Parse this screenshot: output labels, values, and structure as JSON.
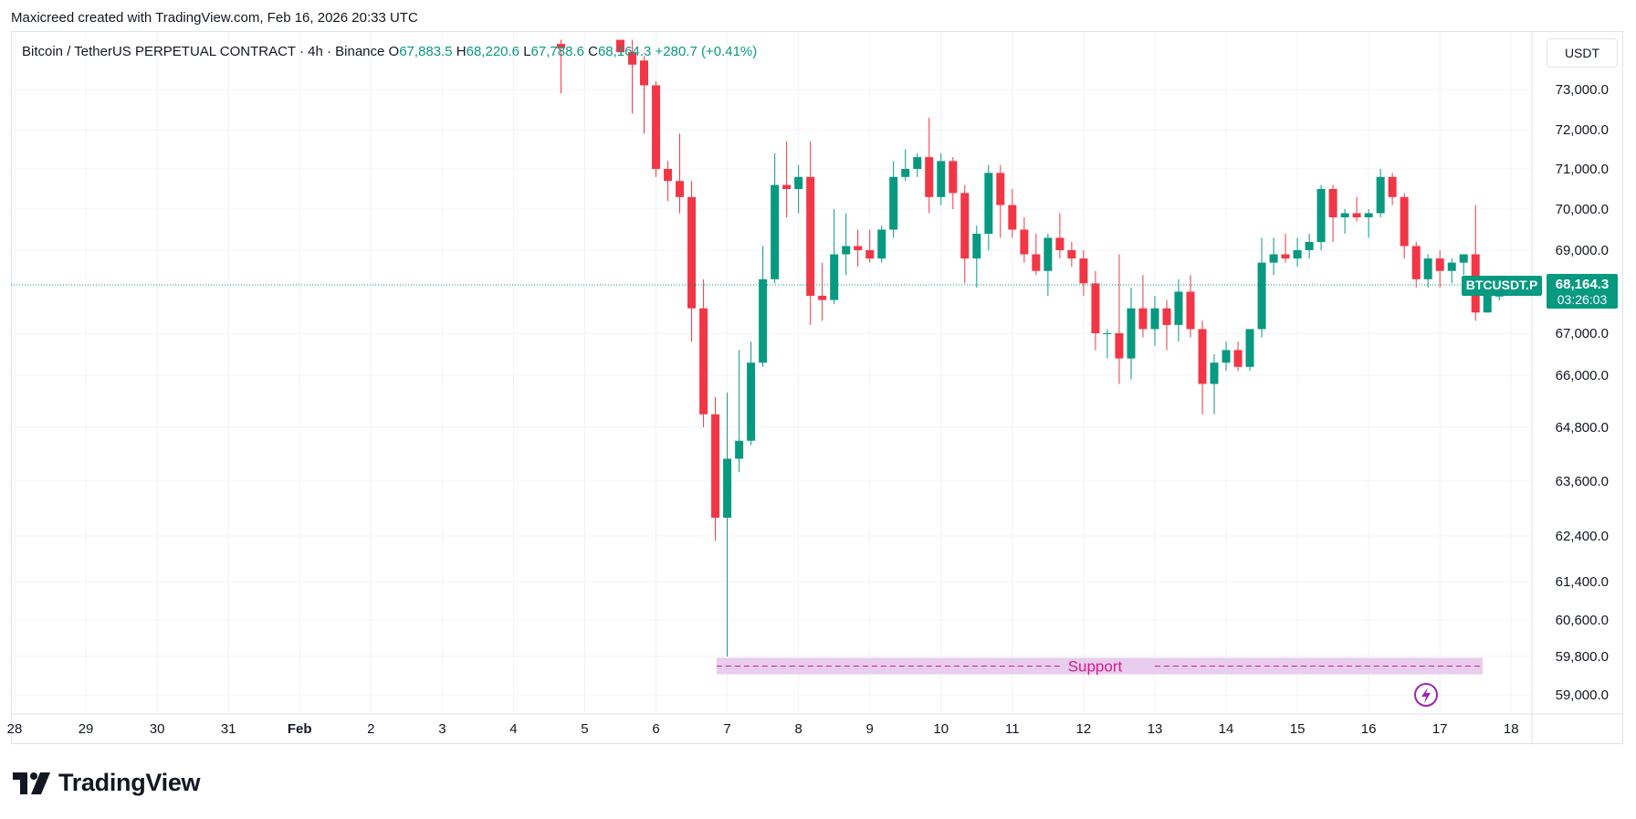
{
  "header": {
    "credit": "Maxicreed created with TradingView.com, Feb 16, 2026 20:33 UTC"
  },
  "legend": {
    "symbol": "Bitcoin / TetherUS PERPETUAL CONTRACT · 4h · Binance",
    "open_label": "O",
    "open": "67,883.5",
    "high_label": "H",
    "high": "68,220.6",
    "low_label": "L",
    "low": "67,788.6",
    "close_label": "C",
    "close": "68,164.3",
    "change": "+280.7 (+0.41%)"
  },
  "axis": {
    "unit": "USDT"
  },
  "price_tag": {
    "symbol": "BTCUSDT.P",
    "price": "68,164.3",
    "countdown": "03:26:03"
  },
  "annotation": {
    "text": "Support"
  },
  "brand": {
    "name": "TradingView"
  },
  "colors": {
    "up": "#089981",
    "down": "#f23645",
    "support_band": "#e8cdee",
    "support_line": "#d81b8c",
    "grid": "#f0f3fa"
  },
  "chart_data": {
    "type": "candlestick",
    "timeframe": "4h",
    "ylim": [
      58800,
      74200
    ],
    "y_ticks": [
      73000,
      72000,
      71000,
      70000,
      69000,
      67000,
      66000,
      64800,
      63600,
      62400,
      61400,
      60600,
      59800,
      59000
    ],
    "y_tick_labels": [
      "73,000.0",
      "72,000.0",
      "71,000.0",
      "70,000.0",
      "69,000.0",
      "67,000.0",
      "66,000.0",
      "64,800.0",
      "63,600.0",
      "62,400.0",
      "61,400.0",
      "60,600.0",
      "59,800.0",
      "59,000.0"
    ],
    "x_ticks": [
      "28",
      "29",
      "30",
      "31",
      "Feb",
      "2",
      "3",
      "4",
      "5",
      "6",
      "7",
      "8",
      "9",
      "10",
      "11",
      "12",
      "13",
      "14",
      "15",
      "16",
      "17",
      "18"
    ],
    "last_price": 68164.3,
    "support": {
      "level": 59600,
      "label": "Support",
      "from_day": 5.85,
      "to_day": 16.6
    },
    "candles": [
      {
        "t": 3.667,
        "o": 74100,
        "h": 74200,
        "l": 72900,
        "c": 74000
      },
      {
        "t": 4.5,
        "o": 74200,
        "h": 74200,
        "l": 73900,
        "c": 73900
      },
      {
        "t": 4.667,
        "o": 73900,
        "h": 74200,
        "l": 72400,
        "c": 73600
      },
      {
        "t": 4.833,
        "o": 73700,
        "h": 73800,
        "l": 71900,
        "c": 73100
      },
      {
        "t": 5.0,
        "o": 73100,
        "h": 73200,
        "l": 70800,
        "c": 71000
      },
      {
        "t": 5.167,
        "o": 71000,
        "h": 71200,
        "l": 70200,
        "c": 70700
      },
      {
        "t": 5.333,
        "o": 70700,
        "h": 71900,
        "l": 69900,
        "c": 70300
      },
      {
        "t": 5.5,
        "o": 70300,
        "h": 70700,
        "l": 66800,
        "c": 67600
      },
      {
        "t": 5.667,
        "o": 67600,
        "h": 68300,
        "l": 64800,
        "c": 65100
      },
      {
        "t": 5.833,
        "o": 65100,
        "h": 65500,
        "l": 62300,
        "c": 62800
      },
      {
        "t": 6.0,
        "o": 62800,
        "h": 65600,
        "l": 59800,
        "c": 64100
      },
      {
        "t": 6.167,
        "o": 64100,
        "h": 66600,
        "l": 63800,
        "c": 64500
      },
      {
        "t": 6.333,
        "o": 64500,
        "h": 66800,
        "l": 64400,
        "c": 66300
      },
      {
        "t": 6.5,
        "o": 66300,
        "h": 69100,
        "l": 66200,
        "c": 68300
      },
      {
        "t": 6.667,
        "o": 68300,
        "h": 71400,
        "l": 68200,
        "c": 70600
      },
      {
        "t": 6.833,
        "o": 70600,
        "h": 71700,
        "l": 69800,
        "c": 70500
      },
      {
        "t": 7.0,
        "o": 70500,
        "h": 71100,
        "l": 69900,
        "c": 70800
      },
      {
        "t": 7.167,
        "o": 70800,
        "h": 71700,
        "l": 67200,
        "c": 67900
      },
      {
        "t": 7.333,
        "o": 67900,
        "h": 68700,
        "l": 67300,
        "c": 67800
      },
      {
        "t": 7.5,
        "o": 67800,
        "h": 70000,
        "l": 67700,
        "c": 68900
      },
      {
        "t": 7.667,
        "o": 68900,
        "h": 69900,
        "l": 68400,
        "c": 69100
      },
      {
        "t": 7.833,
        "o": 69100,
        "h": 69500,
        "l": 68600,
        "c": 69000
      },
      {
        "t": 8.0,
        "o": 69000,
        "h": 69500,
        "l": 68700,
        "c": 68800
      },
      {
        "t": 8.167,
        "o": 68800,
        "h": 69600,
        "l": 68700,
        "c": 69500
      },
      {
        "t": 8.333,
        "o": 69500,
        "h": 71200,
        "l": 69300,
        "c": 70800
      },
      {
        "t": 8.5,
        "o": 70800,
        "h": 71500,
        "l": 70700,
        "c": 71000
      },
      {
        "t": 8.667,
        "o": 71000,
        "h": 71400,
        "l": 70800,
        "c": 71300
      },
      {
        "t": 8.833,
        "o": 71300,
        "h": 72300,
        "l": 69900,
        "c": 70300
      },
      {
        "t": 9.0,
        "o": 70300,
        "h": 71400,
        "l": 70100,
        "c": 71200
      },
      {
        "t": 9.167,
        "o": 71200,
        "h": 71300,
        "l": 70000,
        "c": 70400
      },
      {
        "t": 9.333,
        "o": 70400,
        "h": 70600,
        "l": 68200,
        "c": 68800
      },
      {
        "t": 9.5,
        "o": 68800,
        "h": 69600,
        "l": 68100,
        "c": 69400
      },
      {
        "t": 9.667,
        "o": 69400,
        "h": 71100,
        "l": 69000,
        "c": 70900
      },
      {
        "t": 9.833,
        "o": 70900,
        "h": 71100,
        "l": 69300,
        "c": 70100
      },
      {
        "t": 10.0,
        "o": 70100,
        "h": 70500,
        "l": 69300,
        "c": 69500
      },
      {
        "t": 10.167,
        "o": 69500,
        "h": 69800,
        "l": 68700,
        "c": 68900
      },
      {
        "t": 10.333,
        "o": 68900,
        "h": 69400,
        "l": 68400,
        "c": 68500
      },
      {
        "t": 10.5,
        "o": 68500,
        "h": 69400,
        "l": 67900,
        "c": 69300
      },
      {
        "t": 10.667,
        "o": 69300,
        "h": 69900,
        "l": 68800,
        "c": 69000
      },
      {
        "t": 10.833,
        "o": 69000,
        "h": 69200,
        "l": 68600,
        "c": 68800
      },
      {
        "t": 11.0,
        "o": 68800,
        "h": 69000,
        "l": 67900,
        "c": 68200
      },
      {
        "t": 11.167,
        "o": 68200,
        "h": 68500,
        "l": 66600,
        "c": 67000
      },
      {
        "t": 11.333,
        "o": 67000,
        "h": 67100,
        "l": 66400,
        "c": 67000
      },
      {
        "t": 11.5,
        "o": 67000,
        "h": 68900,
        "l": 65800,
        "c": 66400
      },
      {
        "t": 11.667,
        "o": 66400,
        "h": 68100,
        "l": 65900,
        "c": 67600
      },
      {
        "t": 11.833,
        "o": 67600,
        "h": 68400,
        "l": 66900,
        "c": 67100
      },
      {
        "t": 12.0,
        "o": 67100,
        "h": 67900,
        "l": 66700,
        "c": 67600
      },
      {
        "t": 12.167,
        "o": 67600,
        "h": 67800,
        "l": 66600,
        "c": 67200
      },
      {
        "t": 12.333,
        "o": 67200,
        "h": 68300,
        "l": 66800,
        "c": 68000
      },
      {
        "t": 12.5,
        "o": 68000,
        "h": 68400,
        "l": 66900,
        "c": 67100
      },
      {
        "t": 12.667,
        "o": 67100,
        "h": 67300,
        "l": 65100,
        "c": 65800
      },
      {
        "t": 12.833,
        "o": 65800,
        "h": 66500,
        "l": 65100,
        "c": 66300
      },
      {
        "t": 13.0,
        "o": 66300,
        "h": 66800,
        "l": 66100,
        "c": 66600
      },
      {
        "t": 13.167,
        "o": 66600,
        "h": 66800,
        "l": 66100,
        "c": 66200
      },
      {
        "t": 13.333,
        "o": 66200,
        "h": 67100,
        "l": 66100,
        "c": 67100
      },
      {
        "t": 13.5,
        "o": 67100,
        "h": 69300,
        "l": 66900,
        "c": 68700
      },
      {
        "t": 13.667,
        "o": 68700,
        "h": 69300,
        "l": 68400,
        "c": 68900
      },
      {
        "t": 13.833,
        "o": 68900,
        "h": 69400,
        "l": 68700,
        "c": 68800
      },
      {
        "t": 14.0,
        "o": 68800,
        "h": 69300,
        "l": 68600,
        "c": 69000
      },
      {
        "t": 14.167,
        "o": 69000,
        "h": 69400,
        "l": 68800,
        "c": 69200
      },
      {
        "t": 14.333,
        "o": 69200,
        "h": 70600,
        "l": 69000,
        "c": 70500
      },
      {
        "t": 14.5,
        "o": 70500,
        "h": 70600,
        "l": 69200,
        "c": 69800
      },
      {
        "t": 14.667,
        "o": 69800,
        "h": 70000,
        "l": 69400,
        "c": 69900
      },
      {
        "t": 14.833,
        "o": 69900,
        "h": 70300,
        "l": 69700,
        "c": 69800
      },
      {
        "t": 15.0,
        "o": 69800,
        "h": 70000,
        "l": 69300,
        "c": 69900
      },
      {
        "t": 15.167,
        "o": 69900,
        "h": 71000,
        "l": 69800,
        "c": 70800
      },
      {
        "t": 15.333,
        "o": 70800,
        "h": 70900,
        "l": 70100,
        "c": 70300
      },
      {
        "t": 15.5,
        "o": 70300,
        "h": 70400,
        "l": 68800,
        "c": 69100
      },
      {
        "t": 15.667,
        "o": 69100,
        "h": 69200,
        "l": 68100,
        "c": 68300
      },
      {
        "t": 15.833,
        "o": 68300,
        "h": 68900,
        "l": 68100,
        "c": 68800
      },
      {
        "t": 16.0,
        "o": 68800,
        "h": 69000,
        "l": 68100,
        "c": 68500
      },
      {
        "t": 16.167,
        "o": 68500,
        "h": 68800,
        "l": 68200,
        "c": 68700
      },
      {
        "t": 16.333,
        "o": 68700,
        "h": 68900,
        "l": 68400,
        "c": 68900
      },
      {
        "t": 16.5,
        "o": 68900,
        "h": 70100,
        "l": 67300,
        "c": 67500
      },
      {
        "t": 16.667,
        "o": 67500,
        "h": 68200,
        "l": 67500,
        "c": 67900
      },
      {
        "t": 16.833,
        "o": 67883.5,
        "h": 68220.6,
        "l": 67788.6,
        "c": 68164.3
      }
    ]
  }
}
